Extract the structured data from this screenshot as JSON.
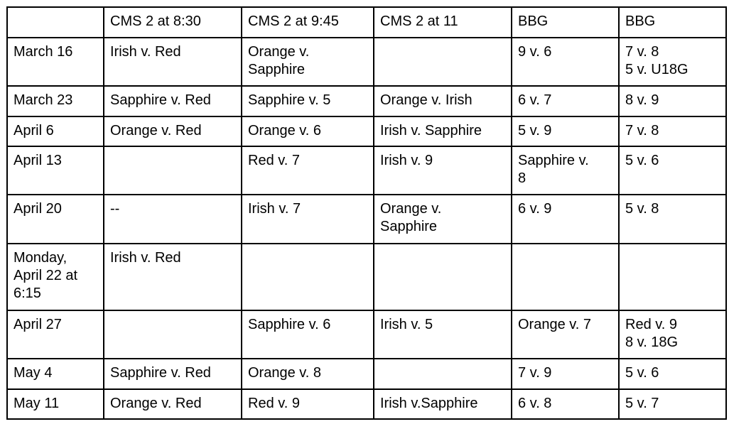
{
  "schedule": {
    "headers": [
      "",
      "CMS 2 at 8:30",
      "CMS 2 at 9:45",
      "CMS 2 at 11",
      "BBG",
      "BBG"
    ],
    "rows": [
      [
        "March 16",
        "Irish v. Red",
        "Orange v.\nSapphire",
        "",
        "9 v. 6",
        "7 v. 8\n5 v. U18G"
      ],
      [
        "March 23",
        "Sapphire v. Red",
        "Sapphire v. 5",
        "Orange v. Irish",
        "6 v. 7",
        "8 v. 9"
      ],
      [
        "April 6",
        "Orange v. Red",
        "Orange v. 6",
        "Irish v. Sapphire",
        "5 v. 9",
        "7 v. 8"
      ],
      [
        "April 13",
        "",
        "Red v. 7",
        "Irish v. 9",
        "Sapphire v.\n8",
        "5 v. 6"
      ],
      [
        "April 20",
        "--",
        "Irish v. 7",
        " Orange v.\nSapphire",
        "6 v. 9",
        "5 v. 8"
      ],
      [
        "Monday,\nApril 22 at\n6:15",
        "Irish v. Red",
        "",
        "",
        "",
        ""
      ],
      [
        "April 27",
        "",
        "Sapphire v. 6",
        "Irish v. 5",
        "Orange v. 7",
        "Red v. 9\n8 v. 18G"
      ],
      [
        "May 4",
        "Sapphire v. Red",
        "Orange v. 8",
        "",
        "7 v. 9",
        "5 v. 6"
      ],
      [
        "May 11",
        "Orange v. Red",
        "Red v. 9",
        "Irish v.Sapphire",
        "6 v. 8",
        "5 v. 7"
      ]
    ]
  }
}
